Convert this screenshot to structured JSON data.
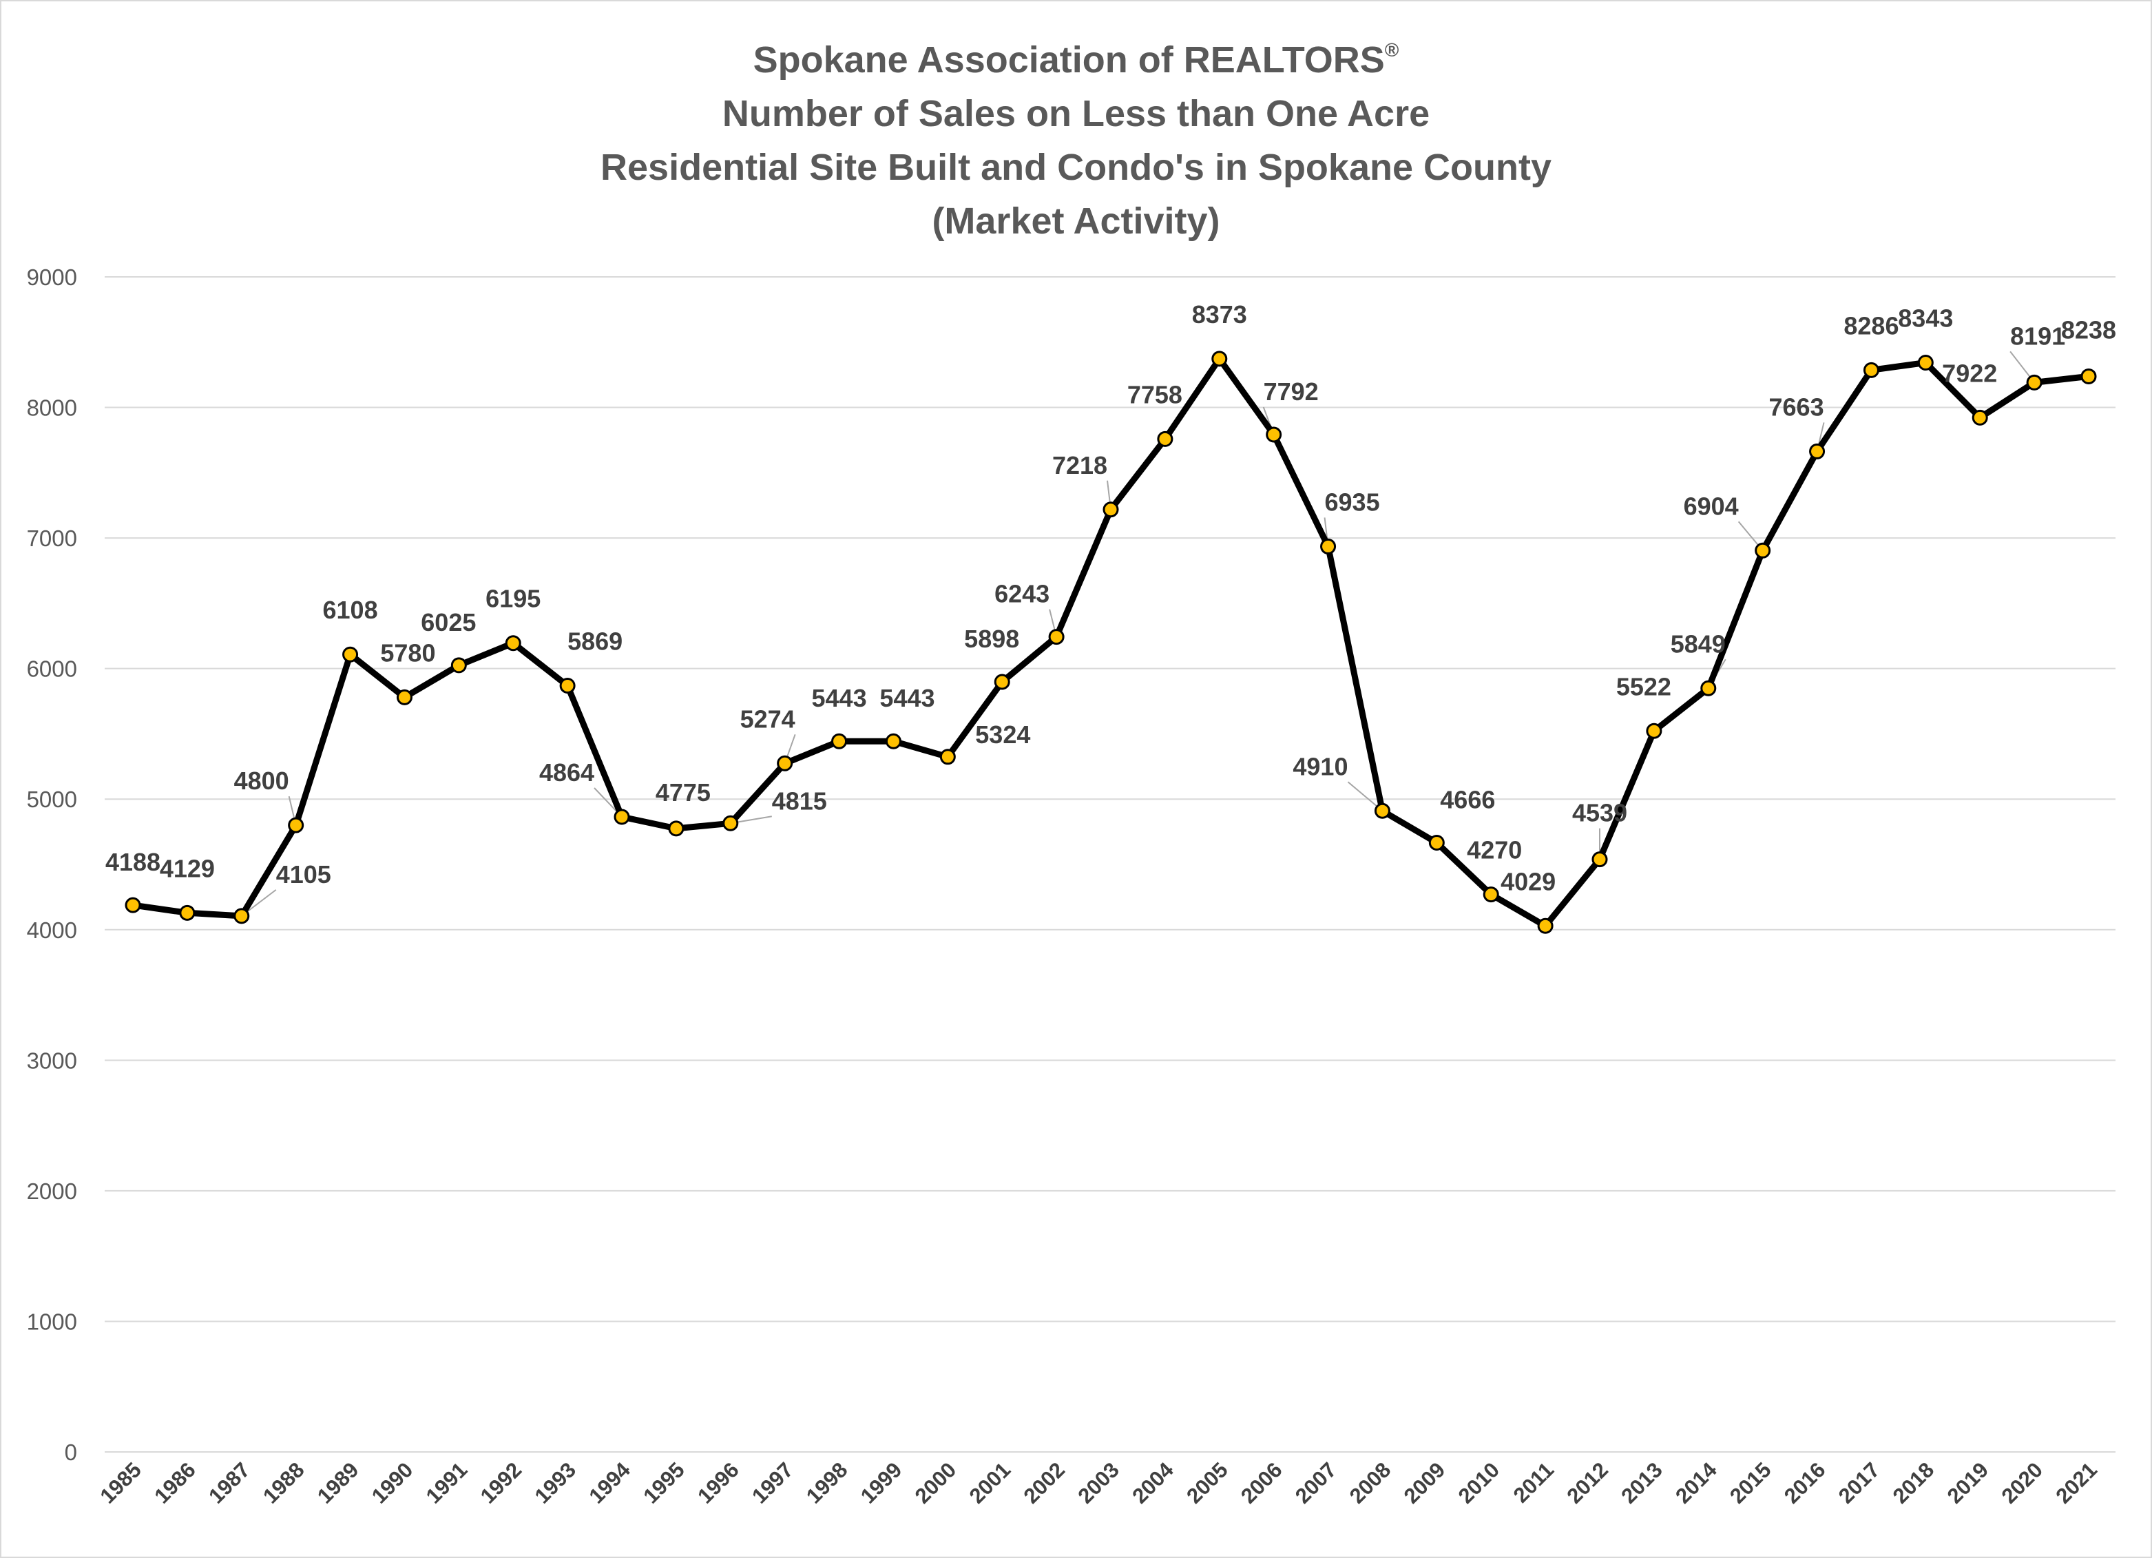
{
  "colors": {
    "title": "#595959",
    "line": "#000000",
    "marker_fill": "#ffc000",
    "grid": "#d9d9d9",
    "labels": "#404040"
  },
  "chart_data": {
    "type": "line",
    "title": {
      "line1": "Spokane Association of REALTORS",
      "line1_mark": "®",
      "line2": "Number of Sales on Less than One Acre",
      "line3": "Residential Site Built and Condo's in Spokane County",
      "line4": "(Market Activity)"
    },
    "xlabel": "",
    "ylabel": "",
    "ylim": [
      0,
      9000
    ],
    "yticks": [
      "0",
      "1000",
      "2000",
      "3000",
      "4000",
      "5000",
      "6000",
      "7000",
      "8000",
      "9000"
    ],
    "grid": true,
    "legend": "none",
    "x": [
      "1985",
      "1986",
      "1987",
      "1988",
      "1989",
      "1990",
      "1991",
      "1992",
      "1993",
      "1994",
      "1995",
      "1996",
      "1997",
      "1998",
      "1999",
      "2000",
      "2001",
      "2002",
      "2003",
      "2004",
      "2005",
      "2006",
      "2007",
      "2008",
      "2009",
      "2010",
      "2011",
      "2012",
      "2013",
      "2014",
      "2015",
      "2016",
      "2017",
      "2018",
      "2019",
      "2020",
      "2021"
    ],
    "values": [
      4188,
      4129,
      4105,
      4800,
      6108,
      5780,
      6025,
      6195,
      5869,
      4864,
      4775,
      4815,
      5274,
      5443,
      5443,
      5324,
      5898,
      6243,
      7218,
      7758,
      8373,
      7792,
      6935,
      4910,
      4666,
      4270,
      4029,
      4539,
      5522,
      5849,
      6904,
      7663,
      8286,
      8343,
      7922,
      8191,
      8238
    ],
    "data_labels": [
      "4188",
      "4129",
      "4105",
      "4800",
      "6108",
      "5780",
      "6025",
      "6195",
      "5869",
      "4864",
      "4775",
      "4815",
      "5274",
      "5443",
      "5443",
      "5324",
      "5898",
      "6243",
      "7218",
      "7758",
      "8373",
      "7792",
      "6935",
      "4910",
      "4666",
      "4270",
      "4029",
      "4539",
      "5522",
      "5849",
      "6904",
      "7663",
      "8286",
      "8343",
      "7922",
      "8191",
      "8238"
    ]
  }
}
